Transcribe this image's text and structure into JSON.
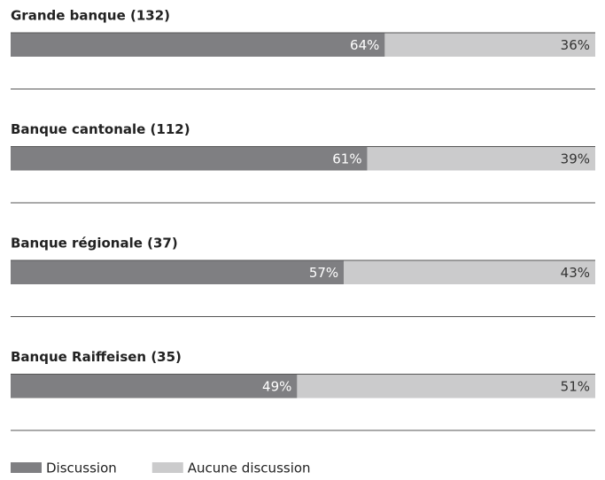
{
  "chart_data": {
    "type": "stacked-bar-horizontal",
    "categories": [
      "Grande banque (132)",
      "Banque cantonale  (112)",
      "Banque régionale  (37)",
      "Banque Raiffeisen  (35)"
    ],
    "series": [
      {
        "name": "Discussion",
        "color": "#7f7f82",
        "values": [
          64,
          61,
          57,
          49
        ],
        "value_labels": [
          "64%",
          "61%",
          "57%",
          "49%"
        ]
      },
      {
        "name": "Aucune discussion",
        "color": "#cbcbcc",
        "values": [
          36,
          39,
          43,
          51
        ],
        "value_labels": [
          "36%",
          "39%",
          "43%",
          "51%"
        ]
      }
    ],
    "legend": "bottom-left"
  }
}
